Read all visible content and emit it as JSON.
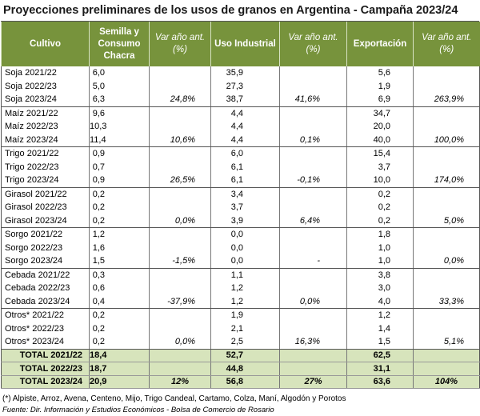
{
  "title": "Proyecciones preliminares de los usos de granos en Argentina - Campaña 2023/24",
  "table": {
    "header": [
      "Cultivo",
      "Semilla y Consumo Chacra",
      "Var año ant. (%)",
      "Uso Industrial",
      "Var año ant. (%)",
      "Exportación",
      "Var año ant. (%)"
    ],
    "rows": [
      [
        "Soja 2021/22",
        "6,0",
        null,
        "35,9",
        null,
        "5,6",
        null
      ],
      [
        "Soja 2022/23",
        "5,0",
        null,
        "27,3",
        null,
        "1,9",
        null
      ],
      [
        "Soja 2023/24",
        "6,3",
        "24,8%",
        "38,7",
        "41,6%",
        "6,9",
        "263,9%"
      ],
      [
        "Maíz 2021/22",
        "9,6",
        null,
        "4,4",
        null,
        "34,7",
        null
      ],
      [
        "Maíz 2022/23",
        "10,3",
        null,
        "4,4",
        null,
        "20,0",
        null
      ],
      [
        "Maíz 2023/24",
        "11,4",
        "10,6%",
        "4,4",
        "0,1%",
        "40,0",
        "100,0%"
      ],
      [
        "Trigo 2021/22",
        "0,9",
        null,
        "6,0",
        null,
        "15,4",
        null
      ],
      [
        "Trigo 2022/23",
        "0,7",
        null,
        "6,1",
        null,
        "3,7",
        null
      ],
      [
        "Trigo 2023/24",
        "0,9",
        "26,5%",
        "6,1",
        "-0,1%",
        "10,0",
        "174,0%"
      ],
      [
        "Girasol 2021/22",
        "0,2",
        null,
        "3,4",
        null,
        "0,2",
        null
      ],
      [
        "Girasol 2022/23",
        "0,2",
        null,
        "3,7",
        null,
        "0,2",
        null
      ],
      [
        "Girasol 2023/24",
        "0,2",
        "0,0%",
        "3,9",
        "6,4%",
        "0,2",
        "5,0%"
      ],
      [
        "Sorgo 2021/22",
        "1,2",
        null,
        "0,0",
        null,
        "1,8",
        null
      ],
      [
        "Sorgo 2022/23",
        "1,6",
        null,
        "0,0",
        null,
        "1,0",
        null
      ],
      [
        "Sorgo 2023/24",
        "1,5",
        "-1,5%",
        "0,0",
        "-",
        "1,0",
        "0,0%"
      ],
      [
        "Cebada 2021/22",
        "0,3",
        null,
        "1,1",
        null,
        "3,8",
        null
      ],
      [
        "Cebada 2022/23",
        "0,6",
        null,
        "1,2",
        null,
        "3,0",
        null
      ],
      [
        "Cebada 2023/24",
        "0,4",
        "-37,9%",
        "1,2",
        "0,0%",
        "4,0",
        "33,3%"
      ],
      [
        "Otros* 2021/22",
        "0,2",
        null,
        "1,9",
        null,
        "1,2",
        null
      ],
      [
        "Otros* 2022/23",
        "0,2",
        null,
        "2,1",
        null,
        "1,4",
        null
      ],
      [
        "Otros* 2023/24",
        "0,2",
        "0,0%",
        "2,5",
        "16,3%",
        "1,5",
        "5,1%"
      ]
    ],
    "totals": [
      [
        "TOTAL 2021/22",
        "18,4",
        null,
        "52,7",
        null,
        "62,5",
        null
      ],
      [
        "TOTAL 2022/23",
        "18,7",
        null,
        "44,8",
        null,
        "31,1",
        null
      ],
      [
        "TOTAL 2023/24",
        "20,9",
        "12%",
        "56,8",
        "27%",
        "63,6",
        "104%"
      ]
    ]
  },
  "footnote": "(*) Alpiste, Arroz, Avena, Centeno, Mijo, Trigo Candeal, Cartamo, Colza, Maní, Algodón y Porotos",
  "source": "Fuente: Dir. Información y Estudios Económicos - Bolsa de Comercio de Rosario"
}
